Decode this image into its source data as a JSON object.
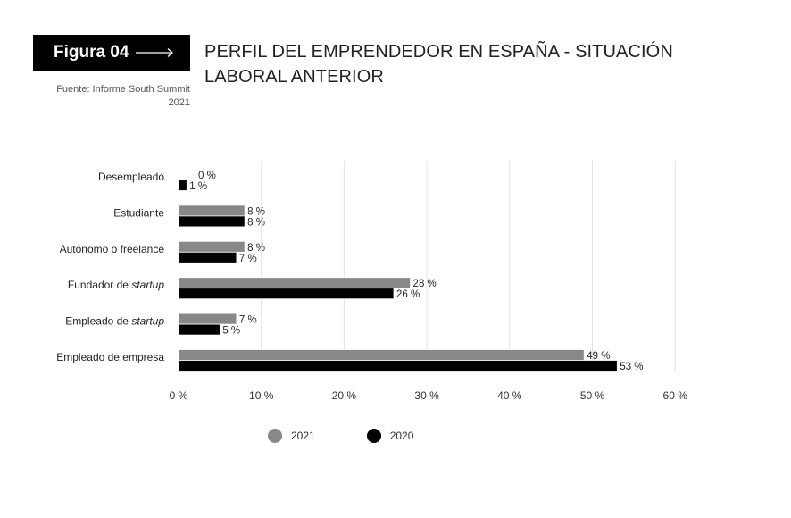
{
  "figure": {
    "label": "Figura 04"
  },
  "title": "PERFIL DEL EMPRENDEDOR EN ESPAÑA - SITUACIÓN LABORAL ANTERIOR",
  "source": "Fuente: Informe South Summit 2021",
  "colors": {
    "series_2021": "#888888",
    "series_2020": "#000000",
    "grid": "#e2e2e2"
  },
  "chart_data": {
    "type": "bar",
    "orientation": "horizontal",
    "categories": [
      {
        "prefix": "Desempleado",
        "italic": ""
      },
      {
        "prefix": "Estudiante",
        "italic": ""
      },
      {
        "prefix": "Autónomo o freelance",
        "italic": ""
      },
      {
        "prefix": "Fundador de ",
        "italic": "startup"
      },
      {
        "prefix": "Empleado de ",
        "italic": "startup"
      },
      {
        "prefix": "Empleado de empresa",
        "italic": ""
      }
    ],
    "series": [
      {
        "name": "2021",
        "values": [
          0,
          8,
          8,
          28,
          7,
          49
        ],
        "labels": [
          "0 %",
          "8 %",
          "8 %",
          "28 %",
          "7 %",
          "49 %"
        ]
      },
      {
        "name": "2020",
        "values": [
          1,
          8,
          7,
          26,
          5,
          53
        ],
        "labels": [
          "1 %",
          "8 %",
          "7 %",
          "26 %",
          "5 %",
          "53 %"
        ]
      }
    ],
    "xlim": [
      0,
      60
    ],
    "xticks": [
      0,
      10,
      20,
      30,
      40,
      50,
      60
    ],
    "xtick_labels": [
      "0 %",
      "10 %",
      "20 %",
      "30 %",
      "40 %",
      "50 %",
      "60 %"
    ],
    "grid": true,
    "legend_position": "bottom-left"
  }
}
